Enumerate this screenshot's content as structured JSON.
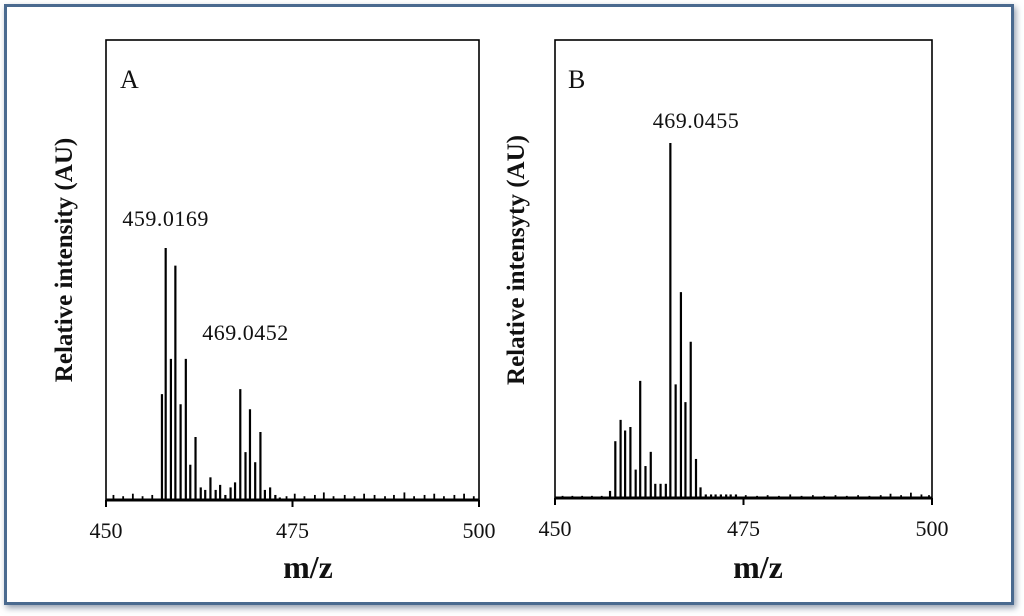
{
  "chart_data": [
    {
      "type": "bar",
      "panel_label": "A",
      "xlabel": "m/z",
      "ylabel": "Relative intensity (AU)",
      "xlim": [
        450,
        500
      ],
      "ylim": [
        0,
        100
      ],
      "xticks": [
        450,
        475,
        500
      ],
      "x": [
        457.5,
        458.0,
        458.7,
        459.3,
        460.0,
        460.7,
        461.3,
        462.0,
        462.7,
        463.3,
        464.0,
        464.7,
        465.3,
        466.0,
        466.7,
        467.3,
        468.0,
        468.7,
        469.3,
        470.0,
        470.7,
        471.3,
        472.0,
        472.7,
        473.3
      ],
      "values": [
        42,
        100,
        56,
        93,
        38,
        56,
        14,
        25,
        5,
        4,
        9,
        4,
        6,
        2,
        5,
        7,
        44,
        19,
        36,
        15,
        27,
        4,
        5,
        2,
        1
      ],
      "noise": {
        "x": [
          451,
          452.3,
          453.6,
          454.9,
          456.2,
          474.2,
          475.3,
          476.6,
          478,
          479.2,
          480.5,
          482,
          483.3,
          484.6,
          486,
          487.4,
          488.6,
          490,
          491.3,
          492.7,
          494,
          495.3,
          496.7,
          498,
          499.3
        ],
        "values": [
          2,
          1.5,
          2.5,
          1.5,
          2,
          1.5,
          2.5,
          1.5,
          2,
          3,
          1.5,
          2,
          1.5,
          2.5,
          2,
          1.5,
          2,
          3,
          1.5,
          2,
          2.5,
          1.5,
          2,
          2.5,
          1.5
        ]
      },
      "annotations": [
        {
          "text": "459.0169",
          "x": 458.0
        },
        {
          "text": "469.0452",
          "x": 468.7
        }
      ]
    },
    {
      "type": "bar",
      "panel_label": "B",
      "xlabel": "m/z",
      "ylabel": "Relative intensyty (AU)",
      "xlim": [
        450,
        500
      ],
      "ylim": [
        0,
        100
      ],
      "xticks": [
        450,
        475,
        500
      ],
      "x": [
        457.3,
        458.0,
        458.7,
        459.3,
        460.0,
        460.7,
        461.3,
        462.0,
        462.7,
        463.3,
        464.0,
        464.7,
        465.3,
        466.0,
        466.7,
        467.3,
        468.0,
        468.7,
        469.3,
        470.0,
        470.7,
        471.3,
        472.0,
        472.7,
        473.3,
        474.0
      ],
      "values": [
        2,
        16,
        22,
        19,
        20,
        8,
        33,
        9,
        13,
        4,
        4,
        4,
        100,
        32,
        58,
        27,
        44,
        11,
        3,
        1,
        1,
        1,
        1,
        1,
        1,
        1
      ],
      "noise": {
        "x": [
          451,
          452.3,
          453.6,
          454.9,
          456.2,
          475.3,
          476.8,
          478.2,
          479.7,
          481.2,
          482.7,
          484.2,
          485.7,
          487.2,
          488.7,
          490.2,
          491.7,
          493.2,
          494.5,
          495.9,
          497.2,
          498.6,
          499.6
        ],
        "values": [
          0.6,
          0.6,
          0.6,
          0.6,
          0.6,
          0.8,
          0.6,
          0.8,
          0.6,
          1,
          0.6,
          0.8,
          0.6,
          0.8,
          0.6,
          0.8,
          0.6,
          0.8,
          1.2,
          0.8,
          1.5,
          1,
          0.8
        ]
      },
      "annotations": [
        {
          "text": "469.0455",
          "x": 468.7
        }
      ]
    }
  ]
}
